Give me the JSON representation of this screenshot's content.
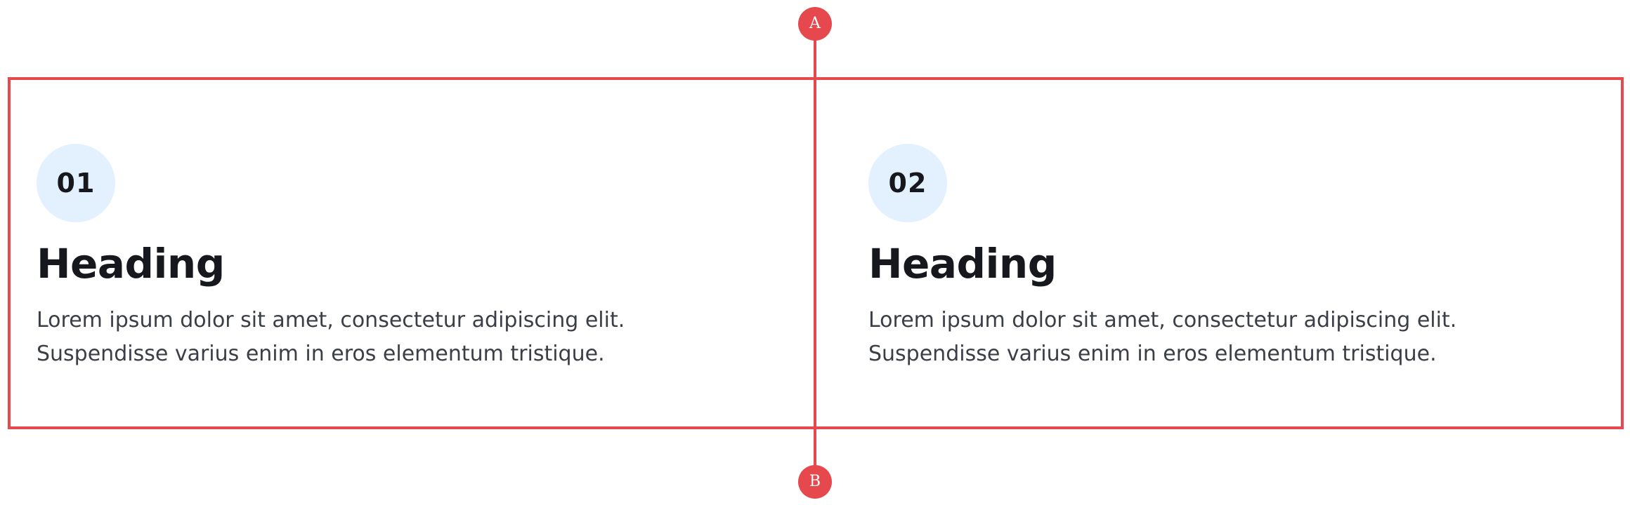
{
  "annotations": {
    "marker_a": "A",
    "marker_b": "B",
    "color": "#e5484d"
  },
  "cards": [
    {
      "number": "01",
      "heading": "Heading",
      "body_line_1": "Lorem ipsum dolor sit amet, consectetur adipiscing elit.",
      "body_line_2": "Suspendisse varius enim in eros elementum tristique."
    },
    {
      "number": "02",
      "heading": "Heading",
      "body_line_1": "Lorem ipsum dolor sit amet, consectetur adipiscing elit.",
      "body_line_2": "Suspendisse varius enim in eros elementum tristique."
    }
  ],
  "colors": {
    "number_badge_bg": "#e3f1fe",
    "heading": "#16181d",
    "body_text": "#3b3e45"
  }
}
